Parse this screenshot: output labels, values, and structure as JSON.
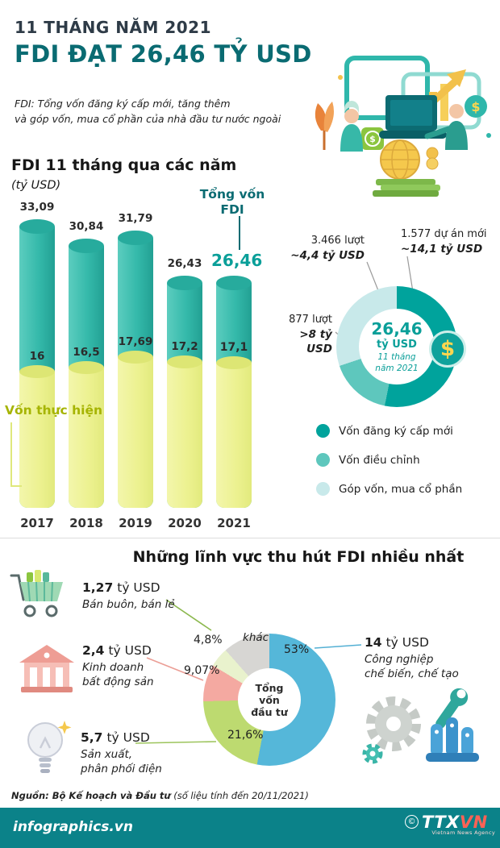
{
  "theme": {
    "accent_teal": "#0a6b72",
    "highlight_teal": "#0aa099",
    "bar_teal": "#34b9aa",
    "bar_yellow": "#eef29b",
    "realized_label_olive": "#a6b403",
    "footer_bar_teal": "#0b8289"
  },
  "header": {
    "kicker": "11 THÁNG NĂM 2021",
    "title": "FDI ĐẠT 26,46 TỶ USD",
    "note_line1": "FDI: Tổng vốn đăng ký cấp mới, tăng thêm",
    "note_line2": "và góp vốn, mua cổ phần của nhà đầu tư nước ngoài"
  },
  "bar_chart_section": {
    "title": "FDI 11 tháng qua các năm",
    "unit": "(tỷ USD)",
    "total_label_line1": "Tổng vốn",
    "total_label_line2": "FDI",
    "realized_label": "Vốn thực hiện"
  },
  "chart_data": [
    {
      "type": "bar",
      "title": "FDI 11 tháng qua các năm",
      "ylabel": "tỷ USD",
      "categories": [
        "2017",
        "2018",
        "2019",
        "2020",
        "2021"
      ],
      "series": [
        {
          "name": "Tổng vốn FDI",
          "values": [
            33.09,
            30.84,
            31.79,
            26.43,
            26.46
          ],
          "labels": [
            "33,09",
            "30,84",
            "31,79",
            "26,43",
            "26,46"
          ],
          "color": "#34b9aa"
        },
        {
          "name": "Vốn thực hiện",
          "values": [
            16,
            16.5,
            17.69,
            17.2,
            17.1
          ],
          "labels": [
            "16",
            "16,5",
            "17,69",
            "17,2",
            "17,1"
          ],
          "color": "#eef29b"
        }
      ],
      "legend_position": "none",
      "grid": false
    },
    {
      "type": "pie",
      "subtype": "donut",
      "center": {
        "value": "26,46",
        "unit": "tỷ USD",
        "period": "11 tháng năm 2021"
      },
      "segments": [
        {
          "label": "Vốn đăng ký cấp mới",
          "value": 14.1,
          "color": "#00a39c",
          "callout_line1": "1.577 dự án mới",
          "callout_line2": "~14,1 tỷ USD"
        },
        {
          "label": "Vốn điều chỉnh",
          "value": 4.4,
          "color": "#5ec7bd",
          "callout_line1": "3.466 lượt",
          "callout_line2": "~4,4 tỷ USD"
        },
        {
          "label": "Góp vốn, mua cổ phần",
          "value": 8,
          "color": "#c8e9ea",
          "callout_line1": "877 lượt",
          "callout_line2": ">8 tỷ USD"
        }
      ],
      "legend_position": "bottom"
    },
    {
      "type": "pie",
      "title": "Những lĩnh vực thu hút FDI nhiều nhất",
      "center_label": "Tổng vốn đầu tư",
      "slices": [
        {
          "name": "Công nghiệp chế biến, chế tạo",
          "pct": 53,
          "pct_label": "53%",
          "amount": "14 tỷ USD",
          "color": "#55b7d9"
        },
        {
          "name": "Sản xuất, phân phối điện",
          "pct": 21.6,
          "pct_label": "21,6%",
          "amount": "5,7 tỷ USD",
          "color": "#bdda70"
        },
        {
          "name": "Kinh doanh bất động sản",
          "pct": 9.07,
          "pct_label": "9,07%",
          "amount": "2,4 tỷ USD",
          "color": "#f4a9a1"
        },
        {
          "name": "Bán buôn, bán lẻ",
          "pct": 4.8,
          "pct_label": "4,8%",
          "amount": "1,27 tỷ USD",
          "color": "#e9f2cd"
        },
        {
          "name": "khác",
          "pct": 11.53,
          "pct_label": "khác",
          "color": "#d7d6d3"
        }
      ]
    }
  ],
  "sectors_section": {
    "title": "Những lĩnh vực thu hút FDI nhiều nhất",
    "center_lines": [
      "Tổng",
      "vốn",
      "đầu tư"
    ],
    "items": [
      {
        "icon": "shopping-cart-icon",
        "amount": "1,27",
        "unit": "tỷ USD",
        "line1": "Bán buôn, bán lẻ",
        "line2": ""
      },
      {
        "icon": "bank-building-icon",
        "amount": "2,4",
        "unit": "tỷ USD",
        "line1": "Kinh doanh",
        "line2": "bất động sản"
      },
      {
        "icon": "light-bulb-icon",
        "amount": "5,7",
        "unit": "tỷ USD",
        "line1": "Sản xuất,",
        "line2": "phân phối điện"
      },
      {
        "icon": "industry-icon",
        "amount": "14",
        "unit": "tỷ USD",
        "line1": "Công nghiệp",
        "line2": "chế biến, chế tạo"
      }
    ]
  },
  "icons": {
    "dollar_symbol": "$"
  },
  "footer": {
    "source_main": "Nguồn: Bộ Kế hoạch và Đầu tư",
    "source_note": " (số liệu tính đến 20/11/2021)",
    "brand": "infographics.vn",
    "agency_copyright": "©",
    "agency_ttx": "TTX",
    "agency_vn": "VN",
    "agency_tagline": "Vietnam News Agency"
  }
}
